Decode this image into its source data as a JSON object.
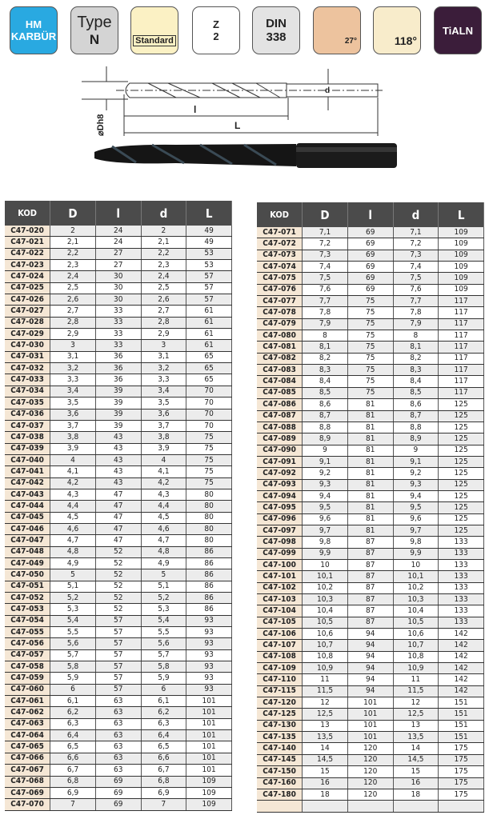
{
  "icons": [
    {
      "name": "material-icon",
      "lines": [
        "HM",
        "KARBÜR"
      ],
      "bg": "#29a9e1",
      "color": "#ffffff"
    },
    {
      "name": "type-icon",
      "lines": [
        "Type",
        "N"
      ],
      "bg": "#d4d4d4",
      "color": "#222222"
    },
    {
      "name": "standard-icon",
      "lines": [
        "Standard"
      ],
      "bg": "#fbf1c4",
      "color": "#222222"
    },
    {
      "name": "flutes-icon",
      "lines": [
        "Z",
        "2"
      ],
      "bg": "#ffffff",
      "color": "#222222"
    },
    {
      "name": "din-icon",
      "lines": [
        "DIN",
        "338"
      ],
      "bg": "#e3e3e3",
      "color": "#222222"
    },
    {
      "name": "helix-angle-icon",
      "lines": [
        "27°"
      ],
      "bg": "#edc39e",
      "color": "#222222"
    },
    {
      "name": "point-angle-icon",
      "lines": [
        "118°"
      ],
      "bg": "#f8eccb",
      "color": "#222222"
    },
    {
      "name": "coating-icon",
      "lines": [
        "TiALN"
      ],
      "bg": "#3b1d3a",
      "color": "#ffffff"
    }
  ],
  "diagram": {
    "dia_label": "⌀Dh8",
    "l_label": "l",
    "L_label": "L",
    "d_label": "d"
  },
  "headers": [
    "KOD",
    "D",
    "l",
    "d",
    "L"
  ],
  "left_rows": [
    [
      "C47-020",
      "2",
      "24",
      "2",
      "49"
    ],
    [
      "C47-021",
      "2,1",
      "24",
      "2,1",
      "49"
    ],
    [
      "C47-022",
      "2,2",
      "27",
      "2,2",
      "53"
    ],
    [
      "C47-023",
      "2,3",
      "27",
      "2,3",
      "53"
    ],
    [
      "C47-024",
      "2,4",
      "30",
      "2,4",
      "57"
    ],
    [
      "C47-025",
      "2,5",
      "30",
      "2,5",
      "57"
    ],
    [
      "C47-026",
      "2,6",
      "30",
      "2,6",
      "57"
    ],
    [
      "C47-027",
      "2,7",
      "33",
      "2,7",
      "61"
    ],
    [
      "C47-028",
      "2,8",
      "33",
      "2,8",
      "61"
    ],
    [
      "C47-029",
      "2,9",
      "33",
      "2,9",
      "61"
    ],
    [
      "C47-030",
      "3",
      "33",
      "3",
      "61"
    ],
    [
      "C47-031",
      "3,1",
      "36",
      "3,1",
      "65"
    ],
    [
      "C47-032",
      "3,2",
      "36",
      "3,2",
      "65"
    ],
    [
      "C47-033",
      "3,3",
      "36",
      "3,3",
      "65"
    ],
    [
      "C47-034",
      "3,4",
      "39",
      "3,4",
      "70"
    ],
    [
      "C47-035",
      "3,5",
      "39",
      "3,5",
      "70"
    ],
    [
      "C47-036",
      "3,6",
      "39",
      "3,6",
      "70"
    ],
    [
      "C47-037",
      "3,7",
      "39",
      "3,7",
      "70"
    ],
    [
      "C47-038",
      "3,8",
      "43",
      "3,8",
      "75"
    ],
    [
      "C47-039",
      "3,9",
      "43",
      "3,9",
      "75"
    ],
    [
      "C47-040",
      "4",
      "43",
      "4",
      "75"
    ],
    [
      "C47-041",
      "4,1",
      "43",
      "4,1",
      "75"
    ],
    [
      "C47-042",
      "4,2",
      "43",
      "4,2",
      "75"
    ],
    [
      "C47-043",
      "4,3",
      "47",
      "4,3",
      "80"
    ],
    [
      "C47-044",
      "4,4",
      "47",
      "4,4",
      "80"
    ],
    [
      "C47-045",
      "4,5",
      "47",
      "4,5",
      "80"
    ],
    [
      "C47-046",
      "4,6",
      "47",
      "4,6",
      "80"
    ],
    [
      "C47-047",
      "4,7",
      "47",
      "4,7",
      "80"
    ],
    [
      "C47-048",
      "4,8",
      "52",
      "4,8",
      "86"
    ],
    [
      "C47-049",
      "4,9",
      "52",
      "4,9",
      "86"
    ],
    [
      "C47-050",
      "5",
      "52",
      "5",
      "86"
    ],
    [
      "C47-051",
      "5,1",
      "52",
      "5,1",
      "86"
    ],
    [
      "C47-052",
      "5,2",
      "52",
      "5,2",
      "86"
    ],
    [
      "C47-053",
      "5,3",
      "52",
      "5,3",
      "86"
    ],
    [
      "C47-054",
      "5,4",
      "57",
      "5,4",
      "93"
    ],
    [
      "C47-055",
      "5,5",
      "57",
      "5,5",
      "93"
    ],
    [
      "C47-056",
      "5,6",
      "57",
      "5,6",
      "93"
    ],
    [
      "C47-057",
      "5,7",
      "57",
      "5,7",
      "93"
    ],
    [
      "C47-058",
      "5,8",
      "57",
      "5,8",
      "93"
    ],
    [
      "C47-059",
      "5,9",
      "57",
      "5,9",
      "93"
    ],
    [
      "C47-060",
      "6",
      "57",
      "6",
      "93"
    ],
    [
      "C47-061",
      "6,1",
      "63",
      "6,1",
      "101"
    ],
    [
      "C47-062",
      "6,2",
      "63",
      "6,2",
      "101"
    ],
    [
      "C47-063",
      "6,3",
      "63",
      "6,3",
      "101"
    ],
    [
      "C47-064",
      "6,4",
      "63",
      "6,4",
      "101"
    ],
    [
      "C47-065",
      "6,5",
      "63",
      "6,5",
      "101"
    ],
    [
      "C47-066",
      "6,6",
      "63",
      "6,6",
      "101"
    ],
    [
      "C47-067",
      "6,7",
      "63",
      "6,7",
      "101"
    ],
    [
      "C47-068",
      "6,8",
      "69",
      "6,8",
      "109"
    ],
    [
      "C47-069",
      "6,9",
      "69",
      "6,9",
      "109"
    ],
    [
      "C47-070",
      "7",
      "69",
      "7",
      "109"
    ]
  ],
  "right_rows": [
    [
      "C47-071",
      "7,1",
      "69",
      "7,1",
      "109"
    ],
    [
      "C47-072",
      "7,2",
      "69",
      "7,2",
      "109"
    ],
    [
      "C47-073",
      "7,3",
      "69",
      "7,3",
      "109"
    ],
    [
      "C47-074",
      "7,4",
      "69",
      "7,4",
      "109"
    ],
    [
      "C47-075",
      "7,5",
      "69",
      "7,5",
      "109"
    ],
    [
      "C47-076",
      "7,6",
      "69",
      "7,6",
      "109"
    ],
    [
      "C47-077",
      "7,7",
      "75",
      "7,7",
      "117"
    ],
    [
      "C47-078",
      "7,8",
      "75",
      "7,8",
      "117"
    ],
    [
      "C47-079",
      "7,9",
      "75",
      "7,9",
      "117"
    ],
    [
      "C47-080",
      "8",
      "75",
      "8",
      "117"
    ],
    [
      "C47-081",
      "8,1",
      "75",
      "8,1",
      "117"
    ],
    [
      "C47-082",
      "8,2",
      "75",
      "8,2",
      "117"
    ],
    [
      "C47-083",
      "8,3",
      "75",
      "8,3",
      "117"
    ],
    [
      "C47-084",
      "8,4",
      "75",
      "8,4",
      "117"
    ],
    [
      "C47-085",
      "8,5",
      "75",
      "8,5",
      "117"
    ],
    [
      "C47-086",
      "8,6",
      "81",
      "8,6",
      "125"
    ],
    [
      "C47-087",
      "8,7",
      "81",
      "8,7",
      "125"
    ],
    [
      "C47-088",
      "8,8",
      "81",
      "8,8",
      "125"
    ],
    [
      "C47-089",
      "8,9",
      "81",
      "8,9",
      "125"
    ],
    [
      "C47-090",
      "9",
      "81",
      "9",
      "125"
    ],
    [
      "C47-091",
      "9,1",
      "81",
      "9,1",
      "125"
    ],
    [
      "C47-092",
      "9,2",
      "81",
      "9,2",
      "125"
    ],
    [
      "C47-093",
      "9,3",
      "81",
      "9,3",
      "125"
    ],
    [
      "C47-094",
      "9,4",
      "81",
      "9,4",
      "125"
    ],
    [
      "C47-095",
      "9,5",
      "81",
      "9,5",
      "125"
    ],
    [
      "C47-096",
      "9,6",
      "81",
      "9,6",
      "125"
    ],
    [
      "C47-097",
      "9,7",
      "81",
      "9,7",
      "125"
    ],
    [
      "C47-098",
      "9,8",
      "87",
      "9,8",
      "133"
    ],
    [
      "C47-099",
      "9,9",
      "87",
      "9,9",
      "133"
    ],
    [
      "C47-100",
      "10",
      "87",
      "10",
      "133"
    ],
    [
      "C47-101",
      "10,1",
      "87",
      "10,1",
      "133"
    ],
    [
      "C47-102",
      "10,2",
      "87",
      "10,2",
      "133"
    ],
    [
      "C47-103",
      "10,3",
      "87",
      "10,3",
      "133"
    ],
    [
      "C47-104",
      "10,4",
      "87",
      "10,4",
      "133"
    ],
    [
      "C47-105",
      "10,5",
      "87",
      "10,5",
      "133"
    ],
    [
      "C47-106",
      "10,6",
      "94",
      "10,6",
      "142"
    ],
    [
      "C47-107",
      "10,7",
      "94",
      "10,7",
      "142"
    ],
    [
      "C47-108",
      "10,8",
      "94",
      "10,8",
      "142"
    ],
    [
      "C47-109",
      "10,9",
      "94",
      "10,9",
      "142"
    ],
    [
      "C47-110",
      "11",
      "94",
      "11",
      "142"
    ],
    [
      "C47-115",
      "11,5",
      "94",
      "11,5",
      "142"
    ],
    [
      "C47-120",
      "12",
      "101",
      "12",
      "151"
    ],
    [
      "C47-125",
      "12,5",
      "101",
      "12,5",
      "151"
    ],
    [
      "C47-130",
      "13",
      "101",
      "13",
      "151"
    ],
    [
      "C47-135",
      "13,5",
      "101",
      "13,5",
      "151"
    ],
    [
      "C47-140",
      "14",
      "120",
      "14",
      "175"
    ],
    [
      "C47-145",
      "14,5",
      "120",
      "14,5",
      "175"
    ],
    [
      "C47-150",
      "15",
      "120",
      "15",
      "175"
    ],
    [
      "C47-160",
      "16",
      "120",
      "16",
      "175"
    ],
    [
      "C47-180",
      "18",
      "120",
      "18",
      "175"
    ],
    [
      "",
      "",
      "",
      "",
      ""
    ]
  ]
}
